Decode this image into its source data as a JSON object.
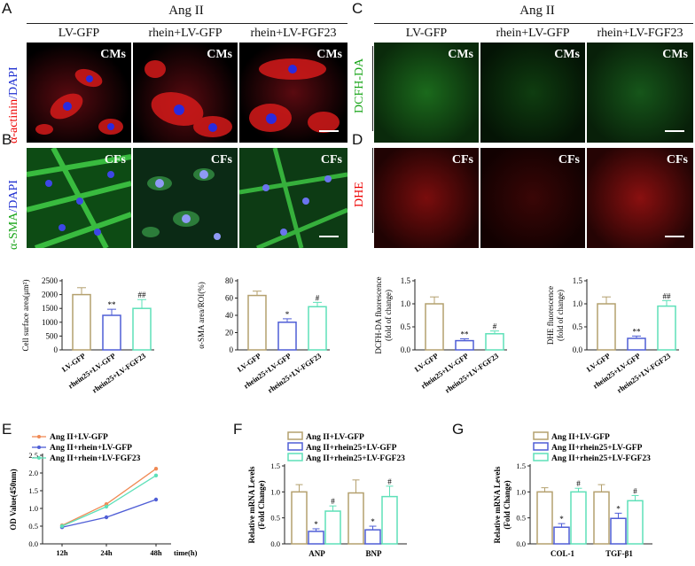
{
  "panels": {
    "A": "A",
    "B": "B",
    "C": "C",
    "D": "D",
    "E": "E",
    "F": "F",
    "G": "G"
  },
  "treatment": "Ang II",
  "columns": [
    "LV-GFP",
    "rhein+LV-GFP",
    "rhein+LV-FGF23"
  ],
  "row_labels": {
    "A": {
      "a": "α-actinin",
      "b": "/DAPI"
    },
    "B": {
      "a": "α-SMA",
      "b": "/DAPI"
    },
    "C": "DCFH-DA",
    "D": "DHE"
  },
  "cell_tags": {
    "A": "CMs",
    "B": "CFs",
    "C": "CMs",
    "D": "CFs"
  },
  "colors": {
    "gold": "#b4a06e",
    "blue": "#4f5ed6",
    "teal": "#5ee0b8",
    "red": "#e53b2b",
    "green": "#2fbf3f"
  },
  "bar_charts": [
    {
      "ylabel": "Cell surface area(μm²)",
      "ylim": [
        0,
        2500
      ],
      "ticks": [
        "0",
        "500",
        "1000",
        "1500",
        "2000",
        "2500"
      ],
      "categories": [
        "LV-GFP",
        "rhein25+LV-GFP",
        "rhein25+LV-FGF23"
      ],
      "values": [
        2000,
        1250,
        1500
      ],
      "errors": [
        250,
        220,
        320
      ],
      "sig": [
        "",
        "**",
        "##"
      ]
    },
    {
      "ylabel": "α-SMA area/ROI(%)",
      "ylim": [
        0,
        80
      ],
      "ticks": [
        "0",
        "20",
        "40",
        "60",
        "80"
      ],
      "categories": [
        "LV-GFP",
        "rhein25+LV-GFP",
        "rhein25+LV-FGF23"
      ],
      "values": [
        63,
        32,
        50
      ],
      "errors": [
        5,
        4,
        5
      ],
      "sig": [
        "",
        "*",
        "#"
      ]
    },
    {
      "ylabel": "DCFH-DA fluorescence",
      "ylabel2": "(fold of change)",
      "ylim": [
        0,
        1.5
      ],
      "ticks": [
        "0.0",
        "0.5",
        "1.0",
        "1.5"
      ],
      "categories": [
        "LV-GFP",
        "rhein25+LV-GFP",
        "rhein25+LV-FGF23"
      ],
      "values": [
        1.0,
        0.2,
        0.35
      ],
      "errors": [
        0.15,
        0.04,
        0.06
      ],
      "sig": [
        "",
        "**",
        "#"
      ]
    },
    {
      "ylabel": "DHE fluorescence",
      "ylabel2": "(fold of change)",
      "ylim": [
        0,
        1.5
      ],
      "ticks": [
        "0.0",
        "0.5",
        "1.0",
        "1.5"
      ],
      "categories": [
        "LV-GFP",
        "rhein25+LV-GFP",
        "rhein25+LV-FGF23"
      ],
      "values": [
        1.0,
        0.25,
        0.95
      ],
      "errors": [
        0.15,
        0.05,
        0.12
      ],
      "sig": [
        "",
        "**",
        "##"
      ]
    }
  ],
  "chart_data": [
    {
      "type": "line",
      "ylabel": "OD Value(450nm)",
      "xlabel": "time(h)",
      "x": [
        "12h",
        "24h",
        "48h"
      ],
      "ylim": [
        0,
        2.5
      ],
      "ticks": [
        "0.0",
        "0.5",
        "1.0",
        "1.5",
        "2.0",
        "2.5"
      ],
      "series": [
        {
          "name": "Ang II+LV-GFP",
          "values": [
            0.52,
            1.12,
            2.12
          ]
        },
        {
          "name": "Ang II+rhein+LV-GFP",
          "values": [
            0.47,
            0.75,
            1.25
          ]
        },
        {
          "name": "Ang II+rhein+LV-FGF23",
          "values": [
            0.5,
            1.05,
            1.93
          ]
        }
      ]
    },
    {
      "type": "bar",
      "ylabel": "Relative mRNA Levels",
      "ylabel2": "(Fold Change)",
      "categories": [
        "ANP",
        "BNP"
      ],
      "ylim": [
        0,
        1.5
      ],
      "ticks": [
        "0.0",
        "0.5",
        "1.0",
        "1.5"
      ],
      "series": [
        {
          "name": "Ang II+LV-GFP",
          "values": [
            1.0,
            0.98
          ],
          "errors": [
            0.14,
            0.25
          ],
          "sig": [
            "",
            ""
          ]
        },
        {
          "name": "Ang II+rhein25+LV-GFP",
          "values": [
            0.24,
            0.27
          ],
          "errors": [
            0.05,
            0.07
          ],
          "sig": [
            "*",
            "*"
          ]
        },
        {
          "name": "Ang II+rhein25+LV-FGF23",
          "values": [
            0.63,
            0.91
          ],
          "errors": [
            0.1,
            0.2
          ],
          "sig": [
            "#",
            "#"
          ]
        }
      ]
    },
    {
      "type": "bar",
      "ylabel": "Relative mRNA Levels",
      "ylabel2": "(Fold Change)",
      "categories": [
        "COL-1",
        "TGF-β1"
      ],
      "ylim": [
        0,
        1.5
      ],
      "ticks": [
        "0.0",
        "0.5",
        "1.0",
        "1.5"
      ],
      "series": [
        {
          "name": "Ang II+LV-GFP",
          "values": [
            1.0,
            1.0
          ],
          "errors": [
            0.08,
            0.14
          ],
          "sig": [
            "",
            ""
          ]
        },
        {
          "name": "Ang II+rhein25+LV-GFP",
          "values": [
            0.32,
            0.49
          ],
          "errors": [
            0.07,
            0.1
          ],
          "sig": [
            "*",
            "*"
          ]
        },
        {
          "name": "Ang II+rhein25+LV-FGF23",
          "values": [
            1.0,
            0.83
          ],
          "errors": [
            0.07,
            0.1
          ],
          "sig": [
            "#",
            "#"
          ]
        }
      ]
    }
  ]
}
